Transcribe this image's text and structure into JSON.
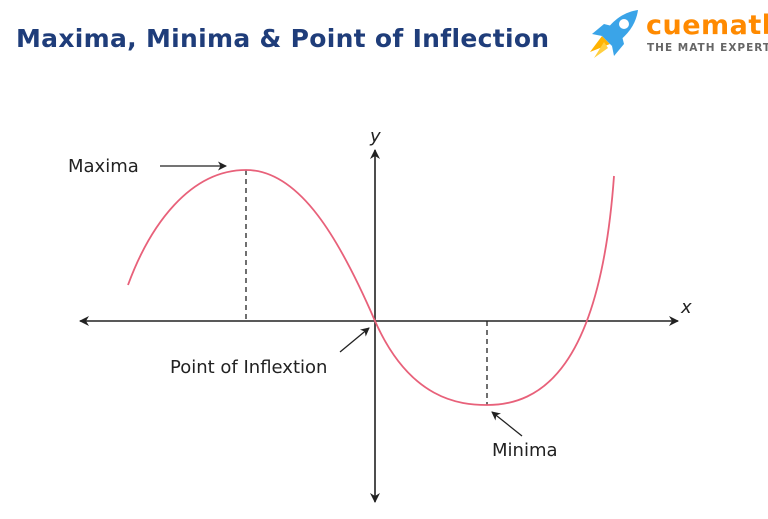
{
  "title": "Maxima, Minima & Point of Inflection",
  "brand": {
    "name": "cuemath",
    "tagline": "THE MATH EXPERT",
    "logo_icon": "rocket-icon",
    "colors": {
      "name": "#ff8a00",
      "rocket_body": "#3aa4e8",
      "rocket_flame": "#ffb300"
    }
  },
  "axes": {
    "x_label": "x",
    "y_label": "y"
  },
  "labels": {
    "maxima": "Maxima",
    "minima": "Minima",
    "inflection": "Point of Inflextion"
  },
  "colors": {
    "curve": "#e8617a",
    "axis": "#222222",
    "title": "#1f3d7a"
  }
}
